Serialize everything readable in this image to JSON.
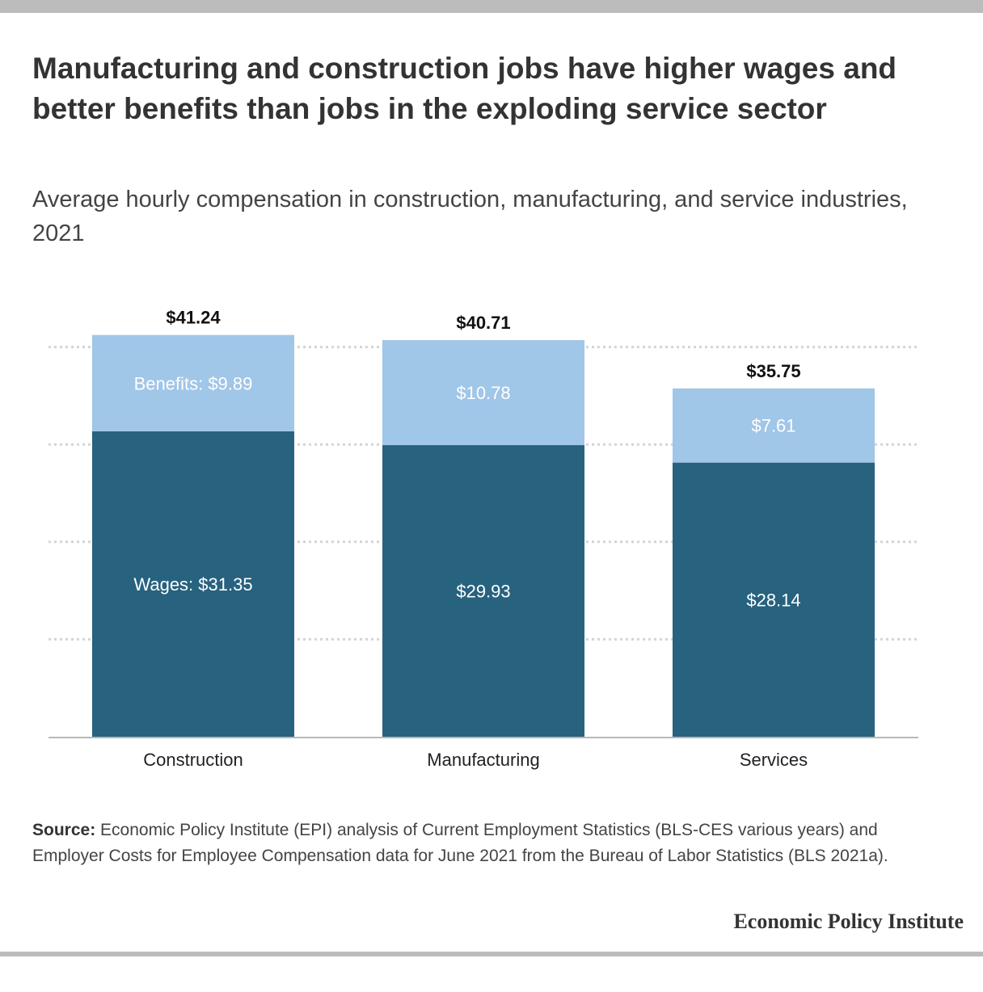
{
  "title": "Manufacturing and construction jobs have higher wages and better benefits than jobs in the exploding service sector",
  "subtitle": "Average hourly compensation in construction, manufacturing, and service industries, 2021",
  "source": {
    "label": "Source:",
    "text": "Economic Policy Institute (EPI) analysis of Current Employment Statistics (BLS-CES various years) and Employer Costs for Employee Compensation data for June 2021 from the Bureau of Labor Statistics (BLS 2021a)."
  },
  "brand": "Economic Policy Institute",
  "colors": {
    "wages": "#27627f",
    "benefits": "#a0c6e8",
    "grid": "#d4d4d4",
    "axis": "#b8b8b8"
  },
  "chart_data": {
    "type": "bar",
    "stacked": true,
    "categories": [
      "Construction",
      "Manufacturing",
      "Services"
    ],
    "series": [
      {
        "name": "Wages",
        "values": [
          31.35,
          29.93,
          28.14
        ],
        "labels": [
          "Wages: $31.35",
          "$29.93",
          "$28.14"
        ]
      },
      {
        "name": "Benefits",
        "values": [
          9.89,
          10.78,
          7.61
        ],
        "labels": [
          "Benefits: $9.89",
          "$10.78",
          "$7.61"
        ]
      }
    ],
    "totals": [
      41.24,
      40.71,
      35.75
    ],
    "total_labels": [
      "$41.24",
      "$40.71",
      "$35.75"
    ],
    "ylim": [
      0,
      40
    ],
    "yticks": [
      0,
      10,
      20,
      30,
      40
    ],
    "grid": true,
    "legend": "none"
  }
}
